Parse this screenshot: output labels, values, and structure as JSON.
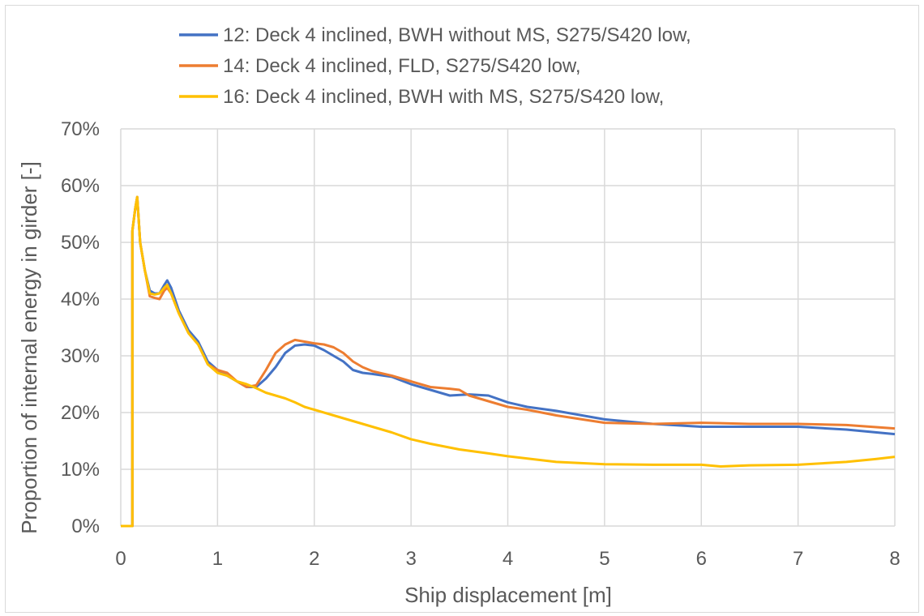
{
  "chart_data": {
    "type": "line",
    "title": "",
    "xlabel": "Ship displacement [m]",
    "ylabel": "Proportion of internal energy in girder [-]",
    "xlim": [
      0,
      8
    ],
    "ylim": [
      0,
      70
    ],
    "x_ticks": [
      "0",
      "1",
      "2",
      "3",
      "4",
      "5",
      "6",
      "7",
      "8"
    ],
    "y_ticks": [
      "0%",
      "10%",
      "20%",
      "30%",
      "40%",
      "50%",
      "60%",
      "70%"
    ],
    "grid": true,
    "legend_position": "top",
    "series": [
      {
        "name": "12: Deck 4 inclined, BWH without MS, S275/S420 low,",
        "color": "#4472C4",
        "points": [
          [
            0,
            0
          ],
          [
            0.12,
            0
          ],
          [
            0.12,
            52
          ],
          [
            0.15,
            56
          ],
          [
            0.17,
            58
          ],
          [
            0.2,
            50
          ],
          [
            0.25,
            45
          ],
          [
            0.3,
            41.5
          ],
          [
            0.35,
            41
          ],
          [
            0.4,
            41
          ],
          [
            0.45,
            42.5
          ],
          [
            0.48,
            43.3
          ],
          [
            0.52,
            42
          ],
          [
            0.6,
            38
          ],
          [
            0.7,
            34.5
          ],
          [
            0.8,
            32.5
          ],
          [
            0.9,
            29
          ],
          [
            1.0,
            27.5
          ],
          [
            1.1,
            26.5
          ],
          [
            1.2,
            25.5
          ],
          [
            1.3,
            24.5
          ],
          [
            1.4,
            24.5
          ],
          [
            1.5,
            26
          ],
          [
            1.6,
            28
          ],
          [
            1.7,
            30.5
          ],
          [
            1.8,
            31.8
          ],
          [
            1.9,
            32
          ],
          [
            2.0,
            31.8
          ],
          [
            2.1,
            31
          ],
          [
            2.2,
            30
          ],
          [
            2.3,
            29
          ],
          [
            2.4,
            27.5
          ],
          [
            2.5,
            27
          ],
          [
            2.6,
            26.8
          ],
          [
            2.8,
            26.3
          ],
          [
            3.0,
            25
          ],
          [
            3.2,
            24
          ],
          [
            3.4,
            23
          ],
          [
            3.6,
            23.2
          ],
          [
            3.8,
            23
          ],
          [
            4.0,
            21.8
          ],
          [
            4.2,
            21
          ],
          [
            4.5,
            20.3
          ],
          [
            5.0,
            18.8
          ],
          [
            5.5,
            18
          ],
          [
            6.0,
            17.5
          ],
          [
            6.5,
            17.5
          ],
          [
            7.0,
            17.5
          ],
          [
            7.5,
            17
          ],
          [
            8.0,
            16.2
          ]
        ]
      },
      {
        "name": "14: Deck 4 inclined, FLD, S275/S420 low,",
        "color": "#ED7D31",
        "points": [
          [
            0,
            0
          ],
          [
            0.12,
            0
          ],
          [
            0.12,
            52
          ],
          [
            0.15,
            56
          ],
          [
            0.17,
            58
          ],
          [
            0.2,
            50
          ],
          [
            0.25,
            45
          ],
          [
            0.3,
            40.5
          ],
          [
            0.35,
            40.2
          ],
          [
            0.4,
            40
          ],
          [
            0.45,
            41.5
          ],
          [
            0.48,
            42
          ],
          [
            0.52,
            41
          ],
          [
            0.6,
            37.5
          ],
          [
            0.7,
            34
          ],
          [
            0.8,
            32
          ],
          [
            0.9,
            28.5
          ],
          [
            1.0,
            27.5
          ],
          [
            1.1,
            27
          ],
          [
            1.2,
            25.5
          ],
          [
            1.3,
            24.5
          ],
          [
            1.4,
            24.8
          ],
          [
            1.5,
            27.5
          ],
          [
            1.6,
            30.5
          ],
          [
            1.7,
            32
          ],
          [
            1.8,
            32.8
          ],
          [
            1.9,
            32.5
          ],
          [
            2.0,
            32.2
          ],
          [
            2.1,
            32
          ],
          [
            2.2,
            31.5
          ],
          [
            2.3,
            30.5
          ],
          [
            2.4,
            29
          ],
          [
            2.5,
            28
          ],
          [
            2.6,
            27.3
          ],
          [
            2.8,
            26.5
          ],
          [
            3.0,
            25.5
          ],
          [
            3.2,
            24.5
          ],
          [
            3.4,
            24.2
          ],
          [
            3.5,
            24
          ],
          [
            3.6,
            23
          ],
          [
            3.8,
            22
          ],
          [
            4.0,
            21
          ],
          [
            4.2,
            20.5
          ],
          [
            4.5,
            19.5
          ],
          [
            5.0,
            18.2
          ],
          [
            5.5,
            18
          ],
          [
            6.0,
            18.2
          ],
          [
            6.5,
            18
          ],
          [
            7.0,
            18
          ],
          [
            7.5,
            17.8
          ],
          [
            8.0,
            17.2
          ]
        ]
      },
      {
        "name": "16: Deck 4 inclined, BWH with MS, S275/S420 low,",
        "color": "#FFC000",
        "points": [
          [
            0,
            0
          ],
          [
            0.12,
            0
          ],
          [
            0.12,
            52
          ],
          [
            0.15,
            56
          ],
          [
            0.17,
            58
          ],
          [
            0.2,
            50
          ],
          [
            0.25,
            45
          ],
          [
            0.3,
            41
          ],
          [
            0.35,
            40.8
          ],
          [
            0.4,
            41
          ],
          [
            0.45,
            42
          ],
          [
            0.48,
            42.5
          ],
          [
            0.52,
            41
          ],
          [
            0.6,
            37.5
          ],
          [
            0.7,
            34
          ],
          [
            0.8,
            32
          ],
          [
            0.9,
            28.5
          ],
          [
            1.0,
            27
          ],
          [
            1.1,
            26.5
          ],
          [
            1.2,
            25.5
          ],
          [
            1.3,
            25
          ],
          [
            1.4,
            24.3
          ],
          [
            1.5,
            23.5
          ],
          [
            1.6,
            23
          ],
          [
            1.7,
            22.5
          ],
          [
            1.8,
            21.8
          ],
          [
            1.9,
            21
          ],
          [
            2.0,
            20.5
          ],
          [
            2.2,
            19.5
          ],
          [
            2.4,
            18.5
          ],
          [
            2.6,
            17.5
          ],
          [
            2.8,
            16.5
          ],
          [
            3.0,
            15.3
          ],
          [
            3.2,
            14.5
          ],
          [
            3.5,
            13.5
          ],
          [
            3.8,
            12.8
          ],
          [
            4.0,
            12.3
          ],
          [
            4.5,
            11.3
          ],
          [
            5.0,
            10.9
          ],
          [
            5.5,
            10.8
          ],
          [
            6.0,
            10.8
          ],
          [
            6.2,
            10.5
          ],
          [
            6.5,
            10.7
          ],
          [
            7.0,
            10.8
          ],
          [
            7.5,
            11.3
          ],
          [
            7.8,
            11.8
          ],
          [
            8.0,
            12.2
          ]
        ]
      }
    ]
  }
}
